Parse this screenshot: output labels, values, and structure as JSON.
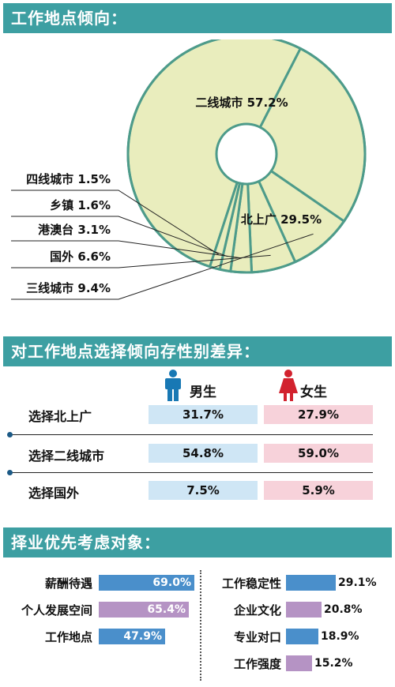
{
  "sections": {
    "location_title": "工作地点倾向：",
    "gender_title": "对工作地点选择倾向存性别差异：",
    "career_title": "择业优先考虑对象："
  },
  "colors": {
    "banner": "#3d9fa2",
    "pie_fill": "#e9edbd",
    "pie_stroke": "#4d9b8a",
    "male_cell": "#cfe6f5",
    "female_cell": "#f7d2da",
    "male_icon": "#1878b4",
    "female_icon": "#d2222e",
    "bar_blue": "#4a8fcb",
    "bar_purple": "#b593c4"
  },
  "chart_data": [
    {
      "type": "pie",
      "style": "donut",
      "labels": [
        "二线城市",
        "北上广",
        "三线城市",
        "国外",
        "港澳台",
        "乡镇",
        "四线城市"
      ],
      "values": [
        57.2,
        29.5,
        9.4,
        6.6,
        3.1,
        1.6,
        1.5
      ],
      "display": [
        "二线城市 57.2%",
        "北上广 29.5%",
        "三线城市 9.4%",
        "国外 6.6%",
        "港澳台 3.1%",
        "乡镇 1.6%",
        "四线城市 1.5%"
      ]
    },
    {
      "type": "table",
      "columns": [
        "男生",
        "女生"
      ],
      "rows": [
        {
          "label": "选择北上广",
          "male": "31.7%",
          "female": "27.9%"
        },
        {
          "label": "选择二线城市",
          "male": "54.8%",
          "female": "59.0%"
        },
        {
          "label": "选择国外",
          "male": "7.5%",
          "female": "5.9%"
        }
      ]
    },
    {
      "type": "bar",
      "orientation": "horizontal",
      "unit": "%",
      "groups": [
        {
          "items": [
            {
              "label": "薪酬待遇",
              "value": 69.0,
              "display": "69.0%",
              "color": "#4a8fcb",
              "value_inside": true
            },
            {
              "label": "个人发展空间",
              "value": 65.4,
              "display": "65.4%",
              "color": "#b593c4",
              "value_inside": true
            },
            {
              "label": "工作地点",
              "value": 47.9,
              "display": "47.9%",
              "color": "#4a8fcb",
              "value_inside": true
            }
          ]
        },
        {
          "items": [
            {
              "label": "工作稳定性",
              "value": 29.1,
              "display": "29.1%",
              "color": "#4a8fcb",
              "value_inside": false
            },
            {
              "label": "企业文化",
              "value": 20.8,
              "display": "20.8%",
              "color": "#b593c4",
              "value_inside": false
            },
            {
              "label": "专业对口",
              "value": 18.9,
              "display": "18.9%",
              "color": "#4a8fcb",
              "value_inside": false
            },
            {
              "label": "工作强度",
              "value": 15.2,
              "display": "15.2%",
              "color": "#b593c4",
              "value_inside": false
            }
          ]
        }
      ]
    }
  ]
}
